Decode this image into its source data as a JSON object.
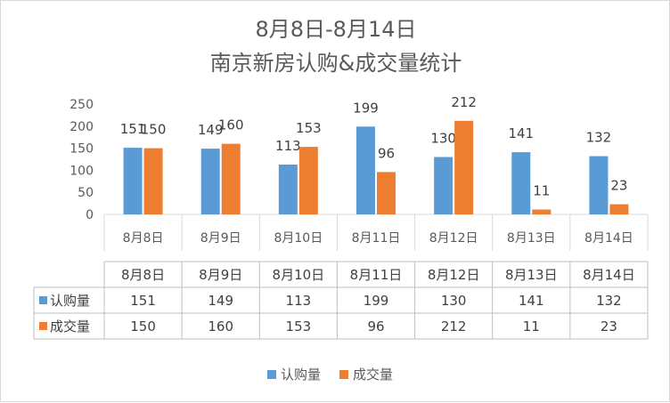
{
  "chart_data": {
    "type": "bar",
    "title_line1": "8月8日-8月14日",
    "title_line2": "南京新房认购&成交量统计",
    "categories": [
      "8月8日",
      "8月9日",
      "8月10日",
      "8月11日",
      "8月12日",
      "8月13日",
      "8月14日"
    ],
    "series": [
      {
        "name": "认购量",
        "color": "#5b9bd5",
        "values": [
          151,
          149,
          113,
          199,
          130,
          141,
          132
        ]
      },
      {
        "name": "成交量",
        "color": "#ed7d31",
        "values": [
          150,
          160,
          153,
          96,
          212,
          11,
          23
        ]
      }
    ],
    "ylim": [
      0,
      250
    ],
    "yticks": [
      0,
      50,
      100,
      150,
      200,
      250
    ],
    "grid": false,
    "data_table": true,
    "legend_position": "bottom"
  }
}
